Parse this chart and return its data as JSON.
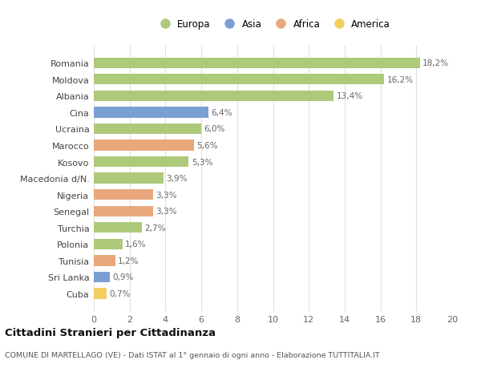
{
  "categories": [
    "Romania",
    "Moldova",
    "Albania",
    "Cina",
    "Ucraina",
    "Marocco",
    "Kosovo",
    "Macedonia d/N.",
    "Nigeria",
    "Senegal",
    "Turchia",
    "Polonia",
    "Tunisia",
    "Sri Lanka",
    "Cuba"
  ],
  "values": [
    18.2,
    16.2,
    13.4,
    6.4,
    6.0,
    5.6,
    5.3,
    3.9,
    3.3,
    3.3,
    2.7,
    1.6,
    1.2,
    0.9,
    0.7
  ],
  "labels": [
    "18,2%",
    "16,2%",
    "13,4%",
    "6,4%",
    "6,0%",
    "5,6%",
    "5,3%",
    "3,9%",
    "3,3%",
    "3,3%",
    "2,7%",
    "1,6%",
    "1,2%",
    "0,9%",
    "0,7%"
  ],
  "continents": [
    "Europa",
    "Europa",
    "Europa",
    "Asia",
    "Europa",
    "Africa",
    "Europa",
    "Europa",
    "Africa",
    "Africa",
    "Europa",
    "Europa",
    "Africa",
    "Asia",
    "America"
  ],
  "colors": {
    "Europa": "#adc97a",
    "Asia": "#7a9fd4",
    "Africa": "#e8a87c",
    "America": "#f2d060"
  },
  "legend_order": [
    "Europa",
    "Asia",
    "Africa",
    "America"
  ],
  "xlim": [
    0,
    20
  ],
  "xticks": [
    0,
    2,
    4,
    6,
    8,
    10,
    12,
    14,
    16,
    18,
    20
  ],
  "title": "Cittadini Stranieri per Cittadinanza",
  "subtitle": "COMUNE DI MARTELLAGO (VE) - Dati ISTAT al 1° gennaio di ogni anno - Elaborazione TUTTITALIA.IT",
  "background_color": "#ffffff",
  "grid_color": "#e0e0e0",
  "bar_height": 0.65,
  "label_fontsize": 7.5,
  "ytick_fontsize": 8,
  "xtick_fontsize": 8,
  "legend_fontsize": 8.5,
  "title_fontsize": 9.5,
  "subtitle_fontsize": 6.8,
  "label_color": "#666666",
  "ytick_color": "#444444",
  "xtick_color": "#666666"
}
